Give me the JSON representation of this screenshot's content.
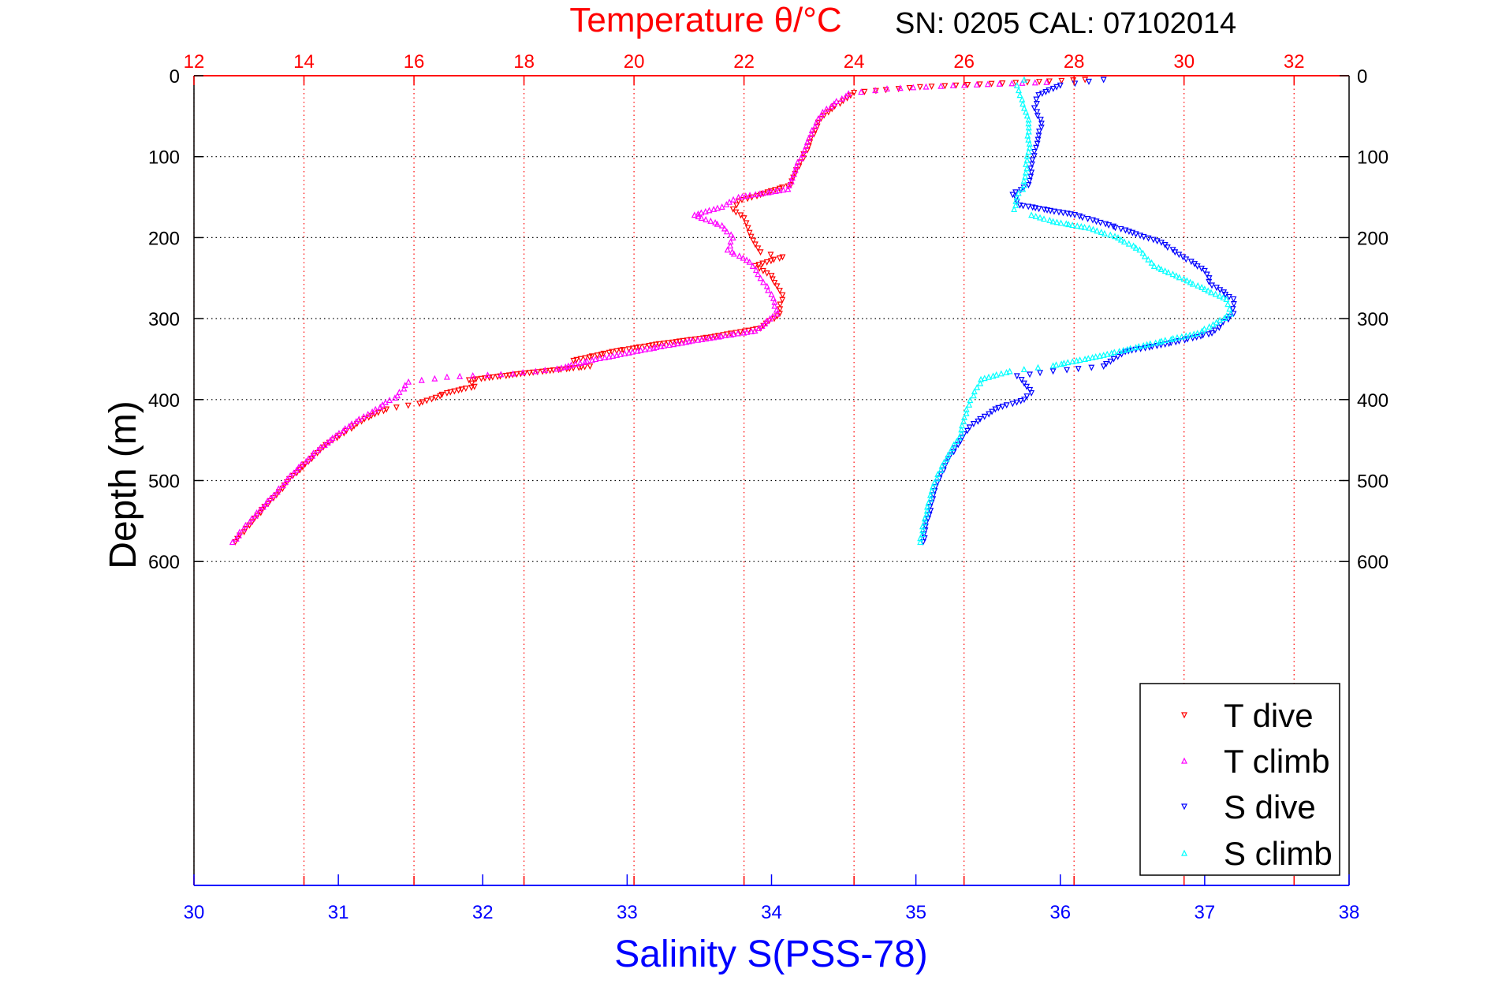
{
  "chart_data": {
    "type": "scatter",
    "title": "Temperature θ/°C",
    "subtitle": "SN: 0205  CAL: 07102014",
    "ylabel": "Depth (m)",
    "xlabel": "Salinity S(PSS-78)",
    "x_top_axis": {
      "label": "Temperature θ/°C",
      "lim": [
        12,
        33
      ],
      "ticks": [
        12,
        14,
        16,
        18,
        20,
        22,
        24,
        26,
        28,
        30,
        32
      ]
    },
    "x_bottom_axis": {
      "label": "Salinity S(PSS-78)",
      "lim": [
        30,
        38
      ],
      "ticks": [
        30,
        31,
        32,
        33,
        34,
        35,
        36,
        37,
        38
      ]
    },
    "y_axis": {
      "lim": [
        0,
        1000
      ],
      "reversed": true,
      "ticks": [
        0,
        100,
        200,
        300,
        400,
        500,
        600
      ]
    },
    "grid": true,
    "legend_position": "bottom-right",
    "legend": [
      "T dive",
      "T climb",
      "S dive",
      "S climb"
    ],
    "colors": {
      "T dive": "#ff0000",
      "T climb": "#ff00ff",
      "S dive": "#0000ff",
      "S climb": "#00ffff",
      "temp_axis": "#ff0000",
      "sal_axis": "#0000ff"
    },
    "series": [
      {
        "name": "T dive",
        "axis": "top",
        "marker": "down",
        "points": [
          [
            5,
            28.2
          ],
          [
            10,
            26.5
          ],
          [
            14,
            25.2
          ],
          [
            21,
            24.0
          ],
          [
            41,
            23.6
          ],
          [
            53,
            23.4
          ],
          [
            82,
            23.2
          ],
          [
            112,
            23.0
          ],
          [
            135,
            22.85
          ],
          [
            147,
            22.3
          ],
          [
            155,
            21.9
          ],
          [
            165,
            21.8
          ],
          [
            176,
            22.0
          ],
          [
            194,
            22.1
          ],
          [
            218,
            22.3
          ],
          [
            224,
            22.7
          ],
          [
            235,
            22.2
          ],
          [
            247,
            22.5
          ],
          [
            260,
            22.6
          ],
          [
            271,
            22.7
          ],
          [
            294,
            22.65
          ],
          [
            312,
            22.3
          ],
          [
            323,
            21.4
          ],
          [
            332,
            20.4
          ],
          [
            341,
            19.6
          ],
          [
            352,
            18.9
          ],
          [
            359,
            19.2
          ],
          [
            367,
            18.1
          ],
          [
            376,
            17.0
          ],
          [
            384,
            17.1
          ],
          [
            392,
            16.6
          ],
          [
            405,
            16.1
          ],
          [
            412,
            15.5
          ],
          [
            424,
            15.1
          ],
          [
            459,
            14.35
          ],
          [
            494,
            13.8
          ],
          [
            518,
            13.5
          ],
          [
            547,
            13.1
          ],
          [
            576,
            12.75
          ]
        ]
      },
      {
        "name": "T climb",
        "axis": "top",
        "marker": "up",
        "points": [
          [
            8,
            27.5
          ],
          [
            12,
            25.8
          ],
          [
            16,
            24.6
          ],
          [
            22,
            23.9
          ],
          [
            41,
            23.5
          ],
          [
            53,
            23.35
          ],
          [
            82,
            23.15
          ],
          [
            112,
            22.95
          ],
          [
            140,
            22.8
          ],
          [
            150,
            21.9
          ],
          [
            162,
            21.6
          ],
          [
            172,
            21.1
          ],
          [
            185,
            21.6
          ],
          [
            200,
            21.8
          ],
          [
            215,
            21.7
          ],
          [
            230,
            22.1
          ],
          [
            250,
            22.3
          ],
          [
            270,
            22.5
          ],
          [
            294,
            22.6
          ],
          [
            315,
            22.2
          ],
          [
            328,
            21.0
          ],
          [
            338,
            20.2
          ],
          [
            350,
            19.3
          ],
          [
            362,
            18.6
          ],
          [
            368,
            17.8
          ],
          [
            372,
            16.6
          ],
          [
            378,
            15.9
          ],
          [
            395,
            15.7
          ],
          [
            412,
            15.3
          ],
          [
            424,
            15.0
          ],
          [
            459,
            14.3
          ],
          [
            494,
            13.75
          ],
          [
            518,
            13.45
          ],
          [
            547,
            13.05
          ],
          [
            576,
            12.7
          ]
        ]
      },
      {
        "name": "S dive",
        "axis": "bottom",
        "marker": "down",
        "points": [
          [
            5,
            36.3
          ],
          [
            12,
            36.0
          ],
          [
            24,
            35.85
          ],
          [
            40,
            35.82
          ],
          [
            59,
            35.87
          ],
          [
            94,
            35.82
          ],
          [
            135,
            35.78
          ],
          [
            147,
            35.67
          ],
          [
            160,
            35.72
          ],
          [
            172,
            36.1
          ],
          [
            180,
            36.25
          ],
          [
            194,
            36.5
          ],
          [
            206,
            36.7
          ],
          [
            224,
            36.85
          ],
          [
            241,
            37.0
          ],
          [
            259,
            37.05
          ],
          [
            276,
            37.2
          ],
          [
            294,
            37.2
          ],
          [
            318,
            37.05
          ],
          [
            329,
            36.8
          ],
          [
            341,
            36.45
          ],
          [
            359,
            36.3
          ],
          [
            365,
            35.95
          ],
          [
            371,
            35.7
          ],
          [
            380,
            35.75
          ],
          [
            392,
            35.8
          ],
          [
            400,
            35.75
          ],
          [
            412,
            35.55
          ],
          [
            430,
            35.4
          ],
          [
            447,
            35.32
          ],
          [
            482,
            35.2
          ],
          [
            518,
            35.12
          ],
          [
            576,
            35.05
          ]
        ]
      },
      {
        "name": "S climb",
        "axis": "bottom",
        "marker": "up",
        "points": [
          [
            5,
            35.75
          ],
          [
            12,
            35.7
          ],
          [
            24,
            35.72
          ],
          [
            40,
            35.75
          ],
          [
            59,
            35.78
          ],
          [
            94,
            35.78
          ],
          [
            135,
            35.75
          ],
          [
            150,
            35.7
          ],
          [
            165,
            35.68
          ],
          [
            172,
            35.8
          ],
          [
            180,
            35.95
          ],
          [
            188,
            36.2
          ],
          [
            200,
            36.4
          ],
          [
            215,
            36.55
          ],
          [
            235,
            36.65
          ],
          [
            255,
            36.9
          ],
          [
            276,
            37.15
          ],
          [
            294,
            37.18
          ],
          [
            318,
            36.95
          ],
          [
            332,
            36.6
          ],
          [
            345,
            36.3
          ],
          [
            358,
            35.95
          ],
          [
            365,
            35.65
          ],
          [
            375,
            35.45
          ],
          [
            395,
            35.4
          ],
          [
            412,
            35.35
          ],
          [
            447,
            35.3
          ],
          [
            482,
            35.18
          ],
          [
            518,
            35.1
          ],
          [
            576,
            35.03
          ]
        ]
      }
    ]
  }
}
